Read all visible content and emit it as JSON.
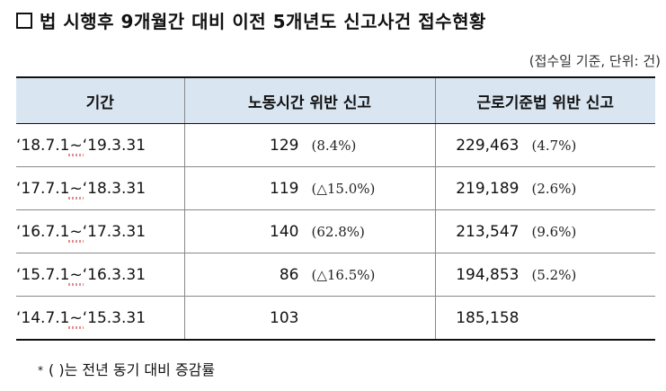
{
  "title": "법 시행후 9개월간 대비 이전 5개년도 신고사건 접수현황",
  "unit_note": "(접수일 기준, 단위: 건)",
  "table": {
    "headers": [
      "기간",
      "노동시간 위반 신고",
      "근로기준법 위반 신고"
    ],
    "rows": [
      {
        "period_start": "‘18.7.1",
        "period_sep": "~",
        "period_end": "‘19.3.31",
        "labor": "129",
        "labor_change": "(8.4%)",
        "std": "229,463",
        "std_change": "(4.7%)"
      },
      {
        "period_start": "‘17.7.1",
        "period_sep": "~",
        "period_end": "‘18.3.31",
        "labor": "119",
        "labor_change": "(△15.0%)",
        "std": "219,189",
        "std_change": "(2.6%)"
      },
      {
        "period_start": "‘16.7.1",
        "period_sep": "~",
        "period_end": "‘17.3.31",
        "labor": "140",
        "labor_change": "(62.8%)",
        "std": "213,547",
        "std_change": "(9.6%)"
      },
      {
        "period_start": "‘15.7.1",
        "period_sep": "~",
        "period_end": "‘16.3.31",
        "labor": "86",
        "labor_change": "(△16.5%)",
        "std": "194,853",
        "std_change": "(5.2%)"
      },
      {
        "period_start": "‘14.7.1",
        "period_sep": "~",
        "period_end": "‘15.3.31",
        "labor": "103",
        "labor_change": "",
        "std": "185,158",
        "std_change": ""
      }
    ]
  },
  "footnote": {
    "mark": "*",
    "text": "( )는 전년 동기 대비 증감률"
  },
  "colors": {
    "header_bg": "#d9e6f2"
  }
}
